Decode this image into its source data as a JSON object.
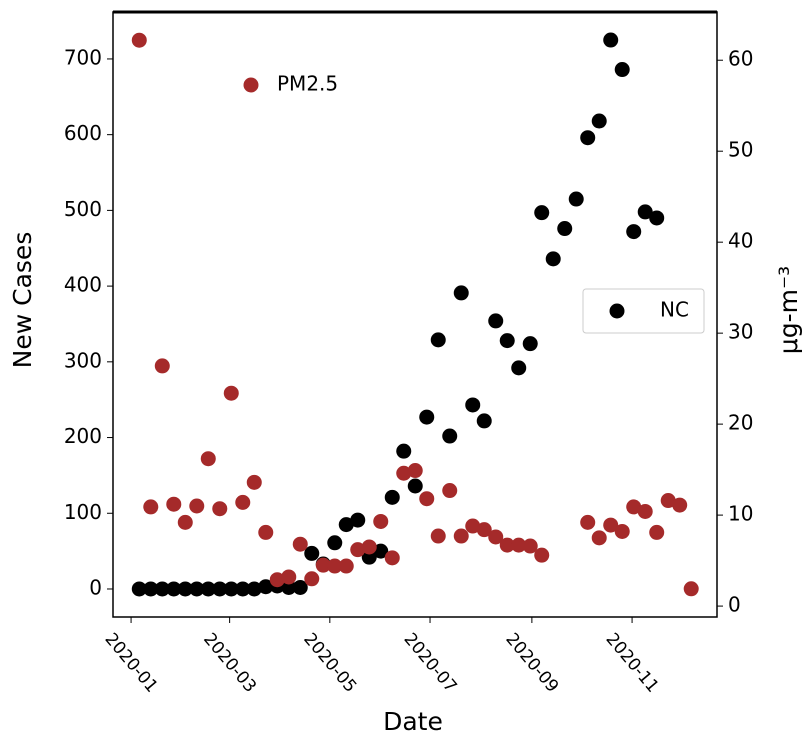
{
  "chart_data": {
    "type": "scatter",
    "xlabel": "Date",
    "ylabel": "New Cases",
    "y2label": "μg-m⁻³",
    "xlim": [
      -11,
      356.7
    ],
    "xticks": [
      {
        "value": 0,
        "label": "2020-01"
      },
      {
        "value": 60,
        "label": "2020-03"
      },
      {
        "value": 121,
        "label": "2020-05"
      },
      {
        "value": 182,
        "label": "2020-07"
      },
      {
        "value": 244,
        "label": "2020-09"
      },
      {
        "value": 305,
        "label": "2020-11"
      }
    ],
    "ylim": [
      -37,
      762
    ],
    "yticks": [
      0,
      100,
      200,
      300,
      400,
      500,
      600,
      700
    ],
    "y2lim": [
      -1.2,
      65.3
    ],
    "y2ticks": [
      0,
      10,
      20,
      30,
      40,
      50,
      60
    ],
    "series": [
      {
        "name": "NC",
        "color": "#000000",
        "axis": "y",
        "legend": "right",
        "x": [
          5,
          12,
          19,
          26,
          33,
          40,
          47,
          54,
          61,
          68,
          75,
          82,
          89,
          96,
          103,
          110,
          117,
          124,
          131,
          138,
          145,
          152,
          159,
          166,
          173,
          180,
          187,
          194,
          201,
          208,
          215,
          222,
          229,
          236,
          243,
          250,
          257,
          264,
          271,
          278,
          285,
          292,
          299,
          306,
          313,
          320
        ],
        "values": [
          0,
          0,
          0,
          0,
          0,
          0,
          0,
          0,
          0,
          0,
          0,
          3,
          4,
          2,
          2,
          47,
          33,
          61,
          85,
          91,
          42,
          50,
          121,
          182,
          136,
          227,
          329,
          202,
          391,
          243,
          222,
          354,
          328,
          292,
          324,
          497,
          436,
          476,
          515,
          596,
          618,
          725,
          686,
          472,
          498,
          490
        ]
      },
      {
        "name": "PM2.5",
        "color": "#a52a2a",
        "axis": "y2",
        "legend": "upper left",
        "x": [
          5,
          12,
          19,
          26,
          33,
          40,
          47,
          54,
          61,
          68,
          75,
          82,
          89,
          96,
          103,
          110,
          117,
          124,
          131,
          138,
          145,
          152,
          159,
          166,
          173,
          180,
          187,
          194,
          201,
          208,
          215,
          222,
          229,
          236,
          243,
          250,
          278,
          285,
          292,
          299,
          306,
          313,
          320,
          327,
          334,
          341
        ],
        "values": [
          62.2,
          10.9,
          26.4,
          11.2,
          9.2,
          11.0,
          16.2,
          10.7,
          23.4,
          11.4,
          13.6,
          8.1,
          2.9,
          3.2,
          6.8,
          3.0,
          4.5,
          4.4,
          4.4,
          6.2,
          6.5,
          9.3,
          5.3,
          14.6,
          14.9,
          11.8,
          7.7,
          12.7,
          7.7,
          8.8,
          8.4,
          7.6,
          6.7,
          6.7,
          6.6,
          5.6,
          9.2,
          7.5,
          8.9,
          8.2,
          10.9,
          10.4,
          8.1,
          11.6,
          11.1,
          1.9
        ]
      }
    ]
  }
}
